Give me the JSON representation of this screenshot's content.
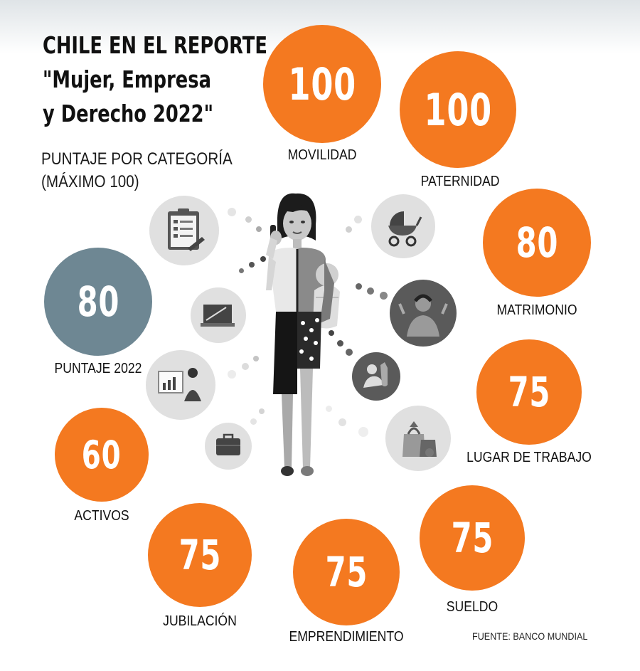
{
  "header": {
    "title_lines": [
      "CHILE EN EL REPORTE",
      "\"Mujer, Empresa",
      "y Derecho 2022\""
    ],
    "subtitle_lines": [
      "PUNTAJE POR CATEGORÍA",
      "(MÁXIMO 100)"
    ]
  },
  "categories": {
    "movilidad": {
      "label": "MOVILIDAD",
      "score": "100"
    },
    "paternidad": {
      "label": "PATERNIDAD",
      "score": "100"
    },
    "matrimonio": {
      "label": "MATRIMONIO",
      "score": "80"
    },
    "lugar_trabajo": {
      "label": "LUGAR DE TRABAJO",
      "score": "75"
    },
    "sueldo": {
      "label": "SUELDO",
      "score": "75"
    },
    "emprendimiento": {
      "label": "EMPRENDIMIENTO",
      "score": "75"
    },
    "jubilacion": {
      "label": "JUBILACIÓN",
      "score": "75"
    },
    "activos": {
      "label": "ACTIVOS",
      "score": "60"
    },
    "puntaje_2022": {
      "label": "PUNTAJE 2022",
      "score": "80"
    }
  },
  "colors": {
    "category": "#f47920",
    "overall": "#6e8793",
    "icons_light": "#e0e0e0",
    "icons_dark": "#5a5a5a"
  },
  "icons": [
    "clipboard-icon",
    "laptop-icon",
    "presentation-icon",
    "briefcase-icon",
    "stroller-icon",
    "bride-icon",
    "breastfeeding-icon",
    "shopping-bags-icon"
  ],
  "source": "FUENTE: BANCO MUNDIAL"
}
